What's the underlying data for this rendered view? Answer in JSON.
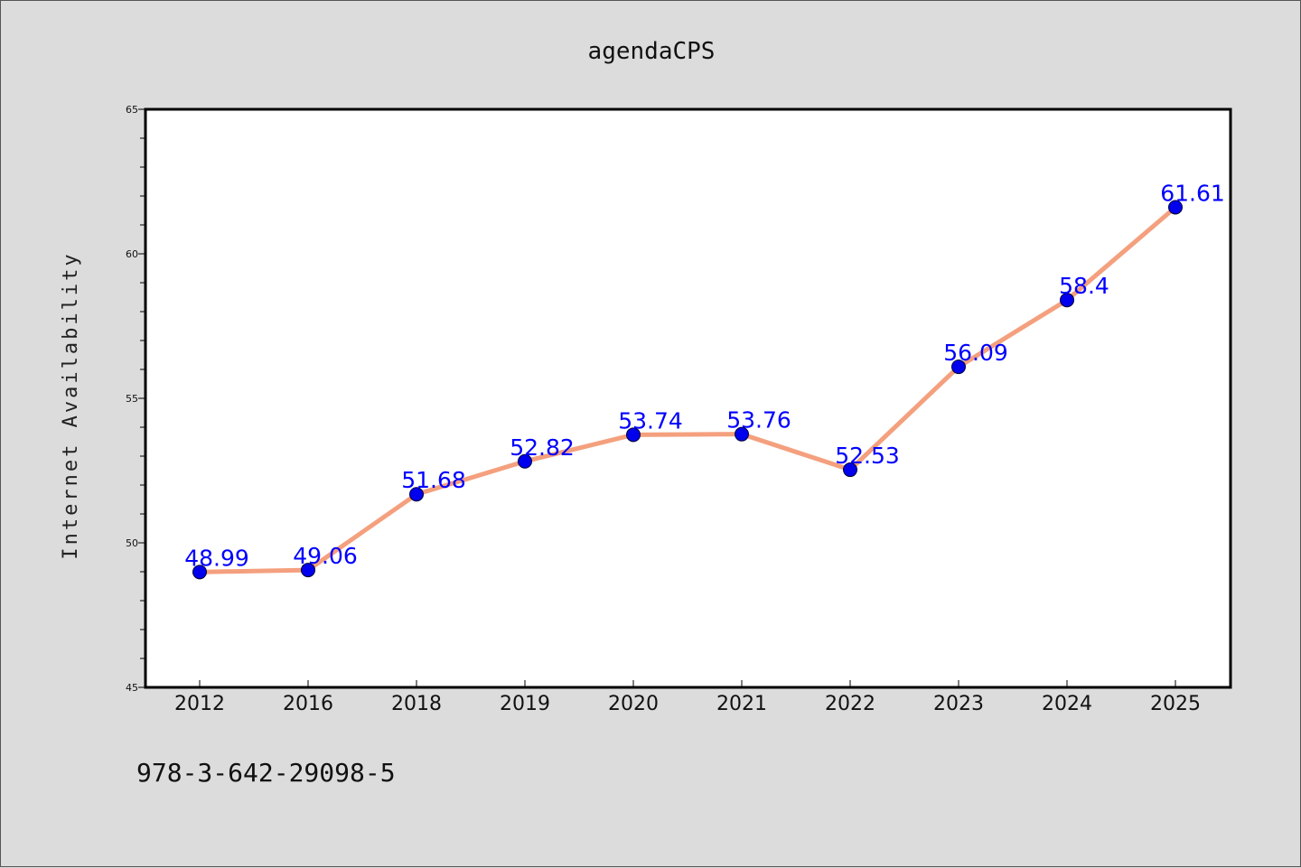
{
  "chart_data": {
    "type": "line",
    "title": "agendaCPS",
    "ylabel": "Internet Availability",
    "xlabel": "",
    "categories": [
      "2012",
      "2016",
      "2018",
      "2019",
      "2020",
      "2021",
      "2022",
      "2023",
      "2024",
      "2025"
    ],
    "values": [
      48.99,
      49.06,
      51.68,
      52.82,
      53.74,
      53.76,
      52.53,
      56.09,
      58.4,
      61.61
    ],
    "data_labels": [
      "48.99",
      "49.06",
      "51.68",
      "52.82",
      "53.74",
      "53.76",
      "52.53",
      "56.09",
      "58.4",
      "61.61"
    ],
    "ylim": [
      45,
      65
    ],
    "yticks": [
      45,
      50,
      55,
      60,
      65
    ],
    "line_color": "#f4a07e",
    "marker_color": "#0000ee",
    "label_color": "#0000ff",
    "grid": false,
    "legend": "none"
  },
  "footnote": "978-3-642-29098-5"
}
